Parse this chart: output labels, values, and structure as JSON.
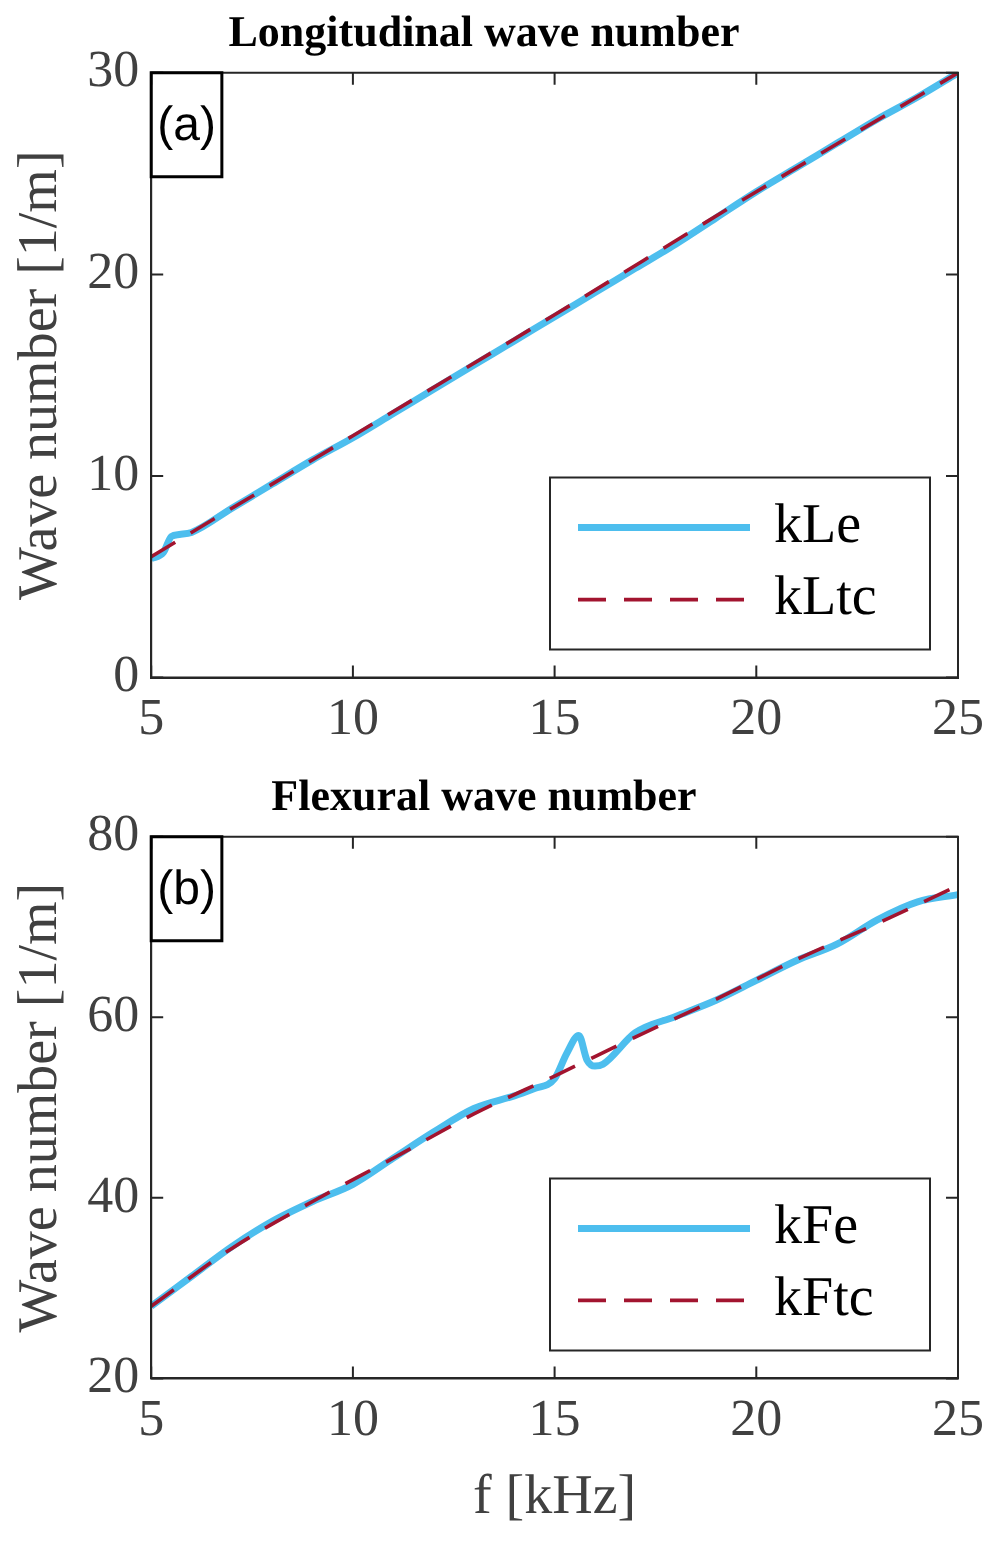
{
  "chart_data": [
    {
      "type": "line",
      "title": "Longitudinal wave number",
      "ylabel": "Wave number [1/m]",
      "xlim": [
        5,
        25
      ],
      "xticks": [
        5,
        10,
        15,
        20,
        25
      ],
      "ylim": [
        0,
        30
      ],
      "yticks": [
        0,
        10,
        20,
        30
      ],
      "grid": false,
      "legend": "bottom right",
      "marker": "none",
      "annotations": [
        "(a)"
      ],
      "series": [
        {
          "name": "kLe",
          "color": "#4dbeee",
          "line_style": "solid",
          "x": [
            5,
            5.3,
            5.5,
            5.7,
            6,
            7,
            8,
            9,
            10,
            11,
            12,
            13,
            14,
            15,
            16,
            17,
            18,
            19,
            20,
            21,
            22,
            23,
            24,
            25
          ],
          "values": [
            5.9,
            6.2,
            7.0,
            7.1,
            7.2,
            8.4,
            9.6,
            10.8,
            11.9,
            13.1,
            14.3,
            15.5,
            16.7,
            17.9,
            19.1,
            20.3,
            21.5,
            22.8,
            24.1,
            25.3,
            26.5,
            27.7,
            28.8,
            30.0
          ]
        },
        {
          "name": "kLtc",
          "color": "#a2142f",
          "line_style": "dashed",
          "x": [
            5,
            10,
            15,
            20,
            25
          ],
          "values": [
            6.0,
            12.0,
            18.0,
            24.1,
            30.0
          ]
        }
      ]
    },
    {
      "type": "line",
      "title": "Flexural wave number",
      "xlabel": "f [kHz]",
      "ylabel": "Wave number [1/m]",
      "xlim": [
        5,
        25
      ],
      "xticks": [
        5,
        10,
        15,
        20,
        25
      ],
      "ylim": [
        20,
        80
      ],
      "yticks": [
        20,
        40,
        60,
        80
      ],
      "grid": false,
      "legend": "bottom right",
      "marker": "none",
      "annotations": [
        "(b)"
      ],
      "series": [
        {
          "name": "kFe",
          "color": "#4dbeee",
          "line_style": "solid",
          "x": [
            5,
            6,
            7,
            8,
            9,
            10,
            11,
            12,
            13,
            14,
            14.5,
            15,
            15.3,
            15.6,
            15.8,
            16,
            16.2,
            17,
            18,
            19,
            20,
            21,
            22,
            23,
            24,
            25
          ],
          "values": [
            28.0,
            31.3,
            34.6,
            37.4,
            39.6,
            41.5,
            44.4,
            47.3,
            49.9,
            51.3,
            52.1,
            53.2,
            56.0,
            58.0,
            55.3,
            54.6,
            54.8,
            58.3,
            60.1,
            61.9,
            64.1,
            66.3,
            68.1,
            70.8,
            72.8,
            73.6
          ]
        },
        {
          "name": "kFtc",
          "color": "#a2142f",
          "line_style": "dashed",
          "x": [
            5,
            7,
            9,
            11,
            13,
            15,
            17,
            19,
            21,
            23,
            25
          ],
          "values": [
            28.0,
            34.4,
            39.6,
            44.4,
            49.3,
            53.5,
            57.8,
            62.0,
            66.4,
            70.4,
            74.6
          ]
        }
      ]
    }
  ]
}
